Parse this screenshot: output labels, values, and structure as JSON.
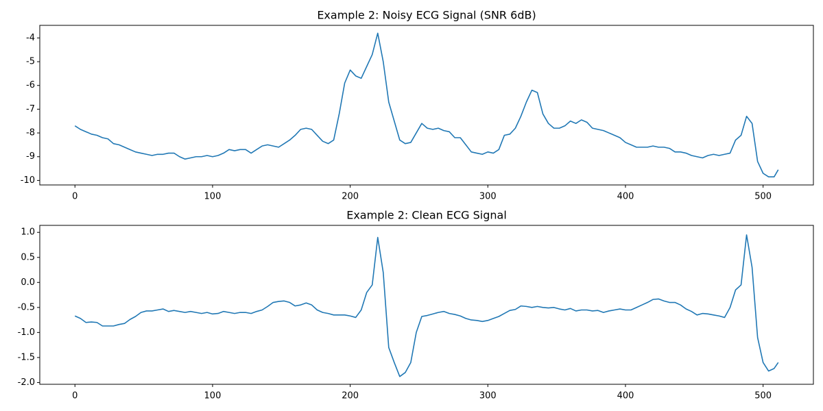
{
  "chart_data": [
    {
      "type": "line",
      "title": "Example 2: Noisy ECG Signal (SNR 6dB)",
      "color": "#1f77b4",
      "x": [
        0,
        4,
        8,
        12,
        16,
        20,
        24,
        28,
        32,
        36,
        40,
        44,
        48,
        52,
        56,
        60,
        64,
        68,
        72,
        76,
        80,
        84,
        88,
        92,
        96,
        100,
        104,
        108,
        112,
        116,
        120,
        124,
        128,
        132,
        136,
        140,
        144,
        148,
        152,
        156,
        160,
        164,
        168,
        172,
        176,
        180,
        184,
        188,
        192,
        196,
        200,
        204,
        208,
        212,
        216,
        220,
        224,
        228,
        232,
        236,
        240,
        244,
        248,
        252,
        256,
        260,
        264,
        268,
        272,
        276,
        280,
        284,
        288,
        292,
        296,
        300,
        304,
        308,
        312,
        316,
        320,
        324,
        328,
        332,
        336,
        340,
        344,
        348,
        352,
        356,
        360,
        364,
        368,
        372,
        376,
        380,
        384,
        388,
        392,
        396,
        400,
        404,
        408,
        412,
        416,
        420,
        424,
        428,
        432,
        436,
        440,
        444,
        448,
        452,
        456,
        460,
        464,
        468,
        472,
        476,
        480,
        484,
        488,
        492,
        496,
        500,
        504,
        508,
        511
      ],
      "values": [
        -7.7,
        -7.85,
        -7.95,
        -8.05,
        -8.1,
        -8.2,
        -8.25,
        -8.45,
        -8.5,
        -8.6,
        -8.7,
        -8.8,
        -8.85,
        -8.9,
        -8.95,
        -8.9,
        -8.9,
        -8.85,
        -8.85,
        -9.0,
        -9.1,
        -9.05,
        -9.0,
        -9.0,
        -8.95,
        -9.0,
        -8.95,
        -8.85,
        -8.7,
        -8.75,
        -8.7,
        -8.7,
        -8.85,
        -8.7,
        -8.55,
        -8.5,
        -8.55,
        -8.6,
        -8.45,
        -8.3,
        -8.1,
        -7.85,
        -7.8,
        -7.85,
        -8.1,
        -8.35,
        -8.45,
        -8.3,
        -7.2,
        -5.9,
        -5.35,
        -5.6,
        -5.7,
        -5.2,
        -4.7,
        -3.8,
        -5.0,
        -6.7,
        -7.5,
        -8.3,
        -8.45,
        -8.4,
        -8.0,
        -7.6,
        -7.8,
        -7.85,
        -7.8,
        -7.9,
        -7.95,
        -8.2,
        -8.2,
        -8.5,
        -8.8,
        -8.85,
        -8.9,
        -8.8,
        -8.85,
        -8.7,
        -8.1,
        -8.05,
        -7.8,
        -7.3,
        -6.7,
        -6.2,
        -6.3,
        -7.2,
        -7.6,
        -7.8,
        -7.8,
        -7.7,
        -7.5,
        -7.6,
        -7.45,
        -7.55,
        -7.8,
        -7.85,
        -7.9,
        -8.0,
        -8.1,
        -8.2,
        -8.4,
        -8.5,
        -8.6,
        -8.6,
        -8.6,
        -8.55,
        -8.6,
        -8.6,
        -8.65,
        -8.8,
        -8.8,
        -8.85,
        -8.95,
        -9.0,
        -9.05,
        -8.95,
        -8.9,
        -8.95,
        -8.9,
        -8.85,
        -8.3,
        -8.1,
        -7.3,
        -7.6,
        -9.2,
        -9.7,
        -9.85,
        -9.85,
        -9.55
      ],
      "xlim": [
        -25.55,
        536.55
      ],
      "ylim": [
        -10.19,
        -3.47
      ],
      "xticks": [
        0,
        100,
        200,
        300,
        400,
        500
      ],
      "yticks": [
        -10,
        -9,
        -8,
        -7,
        -6,
        -5,
        -4
      ]
    },
    {
      "type": "line",
      "title": "Example 2: Clean ECG Signal",
      "color": "#1f77b4",
      "x": [
        0,
        4,
        8,
        12,
        16,
        20,
        24,
        28,
        32,
        36,
        40,
        44,
        48,
        52,
        56,
        60,
        64,
        68,
        72,
        76,
        80,
        84,
        88,
        92,
        96,
        100,
        104,
        108,
        112,
        116,
        120,
        124,
        128,
        132,
        136,
        140,
        144,
        148,
        152,
        156,
        160,
        164,
        168,
        172,
        176,
        180,
        184,
        188,
        192,
        196,
        200,
        204,
        208,
        212,
        216,
        220,
        224,
        228,
        232,
        236,
        240,
        244,
        248,
        252,
        256,
        260,
        264,
        268,
        272,
        276,
        280,
        284,
        288,
        292,
        296,
        300,
        304,
        308,
        312,
        316,
        320,
        324,
        328,
        332,
        336,
        340,
        344,
        348,
        352,
        356,
        360,
        364,
        368,
        372,
        376,
        380,
        384,
        388,
        392,
        396,
        400,
        404,
        408,
        412,
        416,
        420,
        424,
        428,
        432,
        436,
        440,
        444,
        448,
        452,
        456,
        460,
        464,
        468,
        472,
        476,
        480,
        484,
        488,
        492,
        496,
        500,
        504,
        508,
        511
      ],
      "values": [
        -0.67,
        -0.72,
        -0.8,
        -0.79,
        -0.8,
        -0.87,
        -0.87,
        -0.87,
        -0.84,
        -0.82,
        -0.74,
        -0.68,
        -0.6,
        -0.57,
        -0.57,
        -0.55,
        -0.53,
        -0.58,
        -0.56,
        -0.58,
        -0.6,
        -0.58,
        -0.6,
        -0.62,
        -0.6,
        -0.63,
        -0.62,
        -0.58,
        -0.6,
        -0.62,
        -0.6,
        -0.6,
        -0.62,
        -0.58,
        -0.55,
        -0.48,
        -0.4,
        -0.38,
        -0.37,
        -0.4,
        -0.47,
        -0.45,
        -0.41,
        -0.45,
        -0.55,
        -0.6,
        -0.62,
        -0.65,
        -0.65,
        -0.65,
        -0.67,
        -0.7,
        -0.55,
        -0.2,
        -0.05,
        0.9,
        0.2,
        -1.3,
        -1.6,
        -1.88,
        -1.8,
        -1.6,
        -1.0,
        -0.68,
        -0.66,
        -0.63,
        -0.6,
        -0.58,
        -0.62,
        -0.64,
        -0.67,
        -0.72,
        -0.75,
        -0.76,
        -0.78,
        -0.76,
        -0.72,
        -0.68,
        -0.62,
        -0.56,
        -0.54,
        -0.47,
        -0.48,
        -0.5,
        -0.48,
        -0.5,
        -0.51,
        -0.5,
        -0.53,
        -0.55,
        -0.52,
        -0.57,
        -0.55,
        -0.55,
        -0.57,
        -0.56,
        -0.6,
        -0.57,
        -0.55,
        -0.53,
        -0.55,
        -0.55,
        -0.5,
        -0.45,
        -0.4,
        -0.34,
        -0.33,
        -0.37,
        -0.4,
        -0.4,
        -0.45,
        -0.53,
        -0.58,
        -0.65,
        -0.62,
        -0.63,
        -0.65,
        -0.67,
        -0.7,
        -0.5,
        -0.15,
        -0.05,
        0.95,
        0.3,
        -1.1,
        -1.6,
        -1.77,
        -1.72,
        -1.6
      ],
      "xlim": [
        -25.55,
        536.55
      ],
      "ylim": [
        -2.035,
        1.14
      ],
      "xticks": [
        0,
        100,
        200,
        300,
        400,
        500
      ],
      "yticks": [
        {
          "value": -2,
          "label": "-2.0"
        },
        -1.5,
        {
          "value": -1,
          "label": "-1.0"
        },
        -0.5,
        {
          "value": 0,
          "label": "0.0"
        },
        0.5,
        {
          "value": 1,
          "label": "1.0"
        }
      ]
    }
  ]
}
